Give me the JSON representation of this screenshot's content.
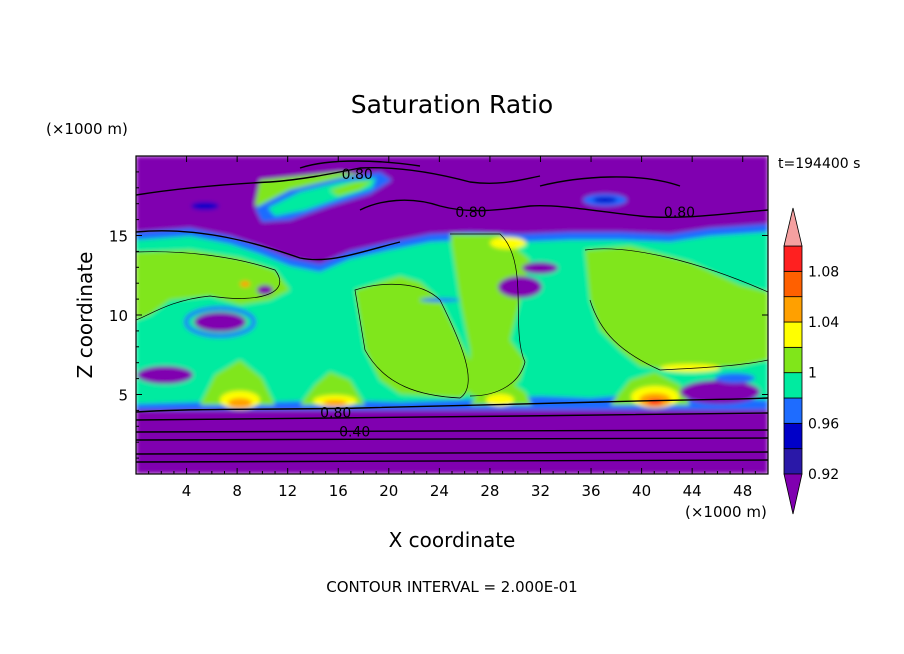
{
  "chart_data": {
    "type": "heatmap",
    "title": "Saturation Ratio",
    "xlabel": "X coordinate",
    "ylabel": "Z coordinate",
    "x_unit": "(×1000 m)",
    "y_unit": "(×1000 m)",
    "time_label": "t=194400 s",
    "footer": "CONTOUR INTERVAL = 2.000E-01",
    "xlim": [
      0,
      50
    ],
    "ylim": [
      0,
      20
    ],
    "x_ticks": [
      4,
      8,
      12,
      16,
      20,
      24,
      28,
      32,
      36,
      40,
      44,
      48
    ],
    "y_ticks": [
      5,
      10,
      15
    ],
    "colorbar": {
      "levels": [
        0.92,
        0.94,
        0.96,
        0.98,
        1.0,
        1.02,
        1.04,
        1.06,
        1.08,
        1.1
      ],
      "tick_labels": [
        "0.92",
        "0.96",
        "1",
        "1.04",
        "1.08"
      ],
      "colors": [
        "#8000b0",
        "#2a18a8",
        "#0000c8",
        "#1e6cff",
        "#00eba0",
        "#80e61a",
        "#ffff00",
        "#ffa000",
        "#ff6000",
        "#ff2020",
        "#f5a0a0"
      ],
      "extend": "both"
    },
    "contour_labels": [
      {
        "text": "0.80",
        "x": 17.5,
        "z": 18.8
      },
      {
        "text": "0.80",
        "x": 26.5,
        "z": 16.4
      },
      {
        "text": "0.80",
        "x": 43.0,
        "z": 16.4
      },
      {
        "text": "0.80",
        "x": 15.8,
        "z": 3.8
      },
      {
        "text": "0.40",
        "x": 17.3,
        "z": 2.6
      }
    ]
  }
}
